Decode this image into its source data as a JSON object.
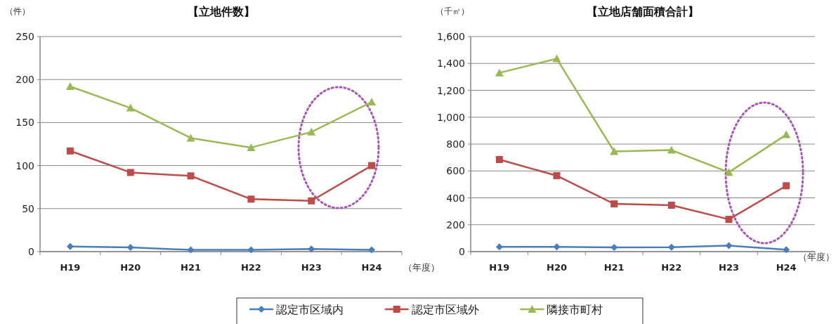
{
  "chart_data": [
    {
      "type": "line",
      "title": "【立地件数】",
      "ylabel": "（件）",
      "xlabel": "（年度）",
      "categories": [
        "H19",
        "H20",
        "H21",
        "H22",
        "H23",
        "H24"
      ],
      "ylim": [
        0,
        250
      ],
      "yticks": [
        0,
        50,
        100,
        150,
        200,
        250
      ],
      "grid": "y",
      "legend": "bottom",
      "series": [
        {
          "name": "認定市区域内",
          "color": "#4a7ebb",
          "marker": "diamond",
          "values": [
            6,
            5,
            2,
            2,
            3,
            2
          ]
        },
        {
          "name": "認定市区域外",
          "color": "#be4b48",
          "marker": "square",
          "values": [
            117,
            92,
            88,
            61,
            59,
            100
          ]
        },
        {
          "name": "隣接市町村",
          "color": "#98b954",
          "marker": "triangle",
          "values": [
            192,
            167,
            132,
            121,
            139,
            174
          ]
        }
      ]
    },
    {
      "type": "line",
      "title": "【立地店舗面積合計】",
      "ylabel": "（千㎡）",
      "xlabel": "（年度）",
      "categories": [
        "H19",
        "H20",
        "H21",
        "H22",
        "H23",
        "H24"
      ],
      "ylim": [
        0,
        1600
      ],
      "yticks": [
        {
          "value": 0,
          "label": "0"
        },
        {
          "value": 200,
          "label": "200"
        },
        {
          "value": 400,
          "label": "400"
        },
        {
          "value": 600,
          "label": "600"
        },
        {
          "value": 800,
          "label": "800"
        },
        {
          "value": 1000,
          "label": "1,000"
        },
        {
          "value": 1200,
          "label": "1,200"
        },
        {
          "value": 1400,
          "label": "1,400"
        },
        {
          "value": 1600,
          "label": "1,600"
        }
      ],
      "grid": "y",
      "series": [
        {
          "color": "#4a7ebb",
          "marker": "diamond",
          "values": [
            35,
            35,
            32,
            33,
            45,
            15
          ]
        },
        {
          "color": "#be4b48",
          "marker": "square",
          "values": [
            685,
            565,
            355,
            345,
            240,
            490
          ]
        },
        {
          "color": "#98b954",
          "marker": "triangle",
          "values": [
            1330,
            1435,
            745,
            755,
            590,
            870
          ]
        }
      ]
    }
  ]
}
